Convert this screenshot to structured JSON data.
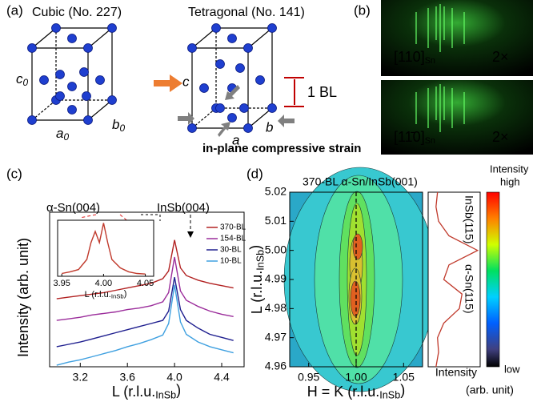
{
  "panel_a": {
    "label": "(a)",
    "cubic": "Cubic (No. 227)",
    "tetragonal": "Tetragonal (No. 141)",
    "c0": {
      "main": "c",
      "sub": "0"
    },
    "a0": {
      "main": "a",
      "sub": "0"
    },
    "b0": {
      "main": "b",
      "sub": "0"
    },
    "c": "c",
    "a": "a",
    "b": "b",
    "bl": "1 BL",
    "strain": "in-plane compressive strain"
  },
  "panel_b": {
    "label": "(b)",
    "images": [
      {
        "index": "[110]",
        "sub": "Sn",
        "magnification": "2×"
      },
      {
        "index": "[11̄0]",
        "sub": "Sn",
        "magnification": "2×"
      }
    ]
  },
  "panel_c": {
    "label": "(c)",
    "type": "line",
    "ylabel": "Intensity (arb. unit)",
    "xlabel": {
      "main": "L (r.l.u.",
      "sub": "InSb",
      "end": ")"
    },
    "xlim": [
      2.94,
      4.59
    ],
    "ylim": [
      0,
      10
    ],
    "xticks": [
      3.2,
      3.6,
      {
        "value": 4,
        "label": "4.0"
      },
      4.4
    ],
    "x": [
      3.0,
      3.1,
      3.2,
      3.3,
      3.4,
      3.5,
      3.6,
      3.7,
      3.8,
      3.9,
      3.95,
      4.0,
      4.05,
      4.1,
      4.2,
      4.3,
      4.4,
      4.5
    ],
    "series": [
      {
        "name": "370-BL",
        "color": "#b22222",
        "values": [
          4.4,
          4.5,
          4.6,
          4.7,
          4.8,
          4.95,
          5.1,
          5.25,
          5.4,
          5.7,
          6.2,
          8.2,
          6.4,
          5.9,
          5.6,
          5.4,
          5.25,
          5.1
        ]
      },
      {
        "name": "154-BL",
        "color": "#9b2d9b",
        "values": [
          3.0,
          3.1,
          3.2,
          3.35,
          3.45,
          3.55,
          3.7,
          3.8,
          3.95,
          4.2,
          4.8,
          7.1,
          4.9,
          4.3,
          3.9,
          3.6,
          3.4,
          3.25
        ]
      },
      {
        "name": "30-BL",
        "color": "#1f1f8f",
        "values": [
          1.3,
          1.45,
          1.6,
          1.8,
          2.0,
          2.2,
          2.4,
          2.6,
          2.8,
          3.0,
          3.6,
          5.8,
          3.7,
          3.0,
          2.5,
          2.1,
          1.9,
          1.7
        ]
      },
      {
        "name": "10-BL",
        "color": "#3fa0e0",
        "values": [
          0.1,
          0.3,
          0.45,
          0.65,
          0.85,
          1.05,
          1.3,
          1.5,
          1.75,
          2.05,
          2.8,
          5.3,
          2.9,
          2.1,
          1.6,
          1.3,
          1.1,
          0.9
        ]
      }
    ],
    "annotations": {
      "alpha_sn": "α-Sn(004)",
      "insb": "InSb(004)"
    },
    "inset": {
      "xlim": [
        3.945,
        4.06
      ],
      "ylim": [
        0,
        10
      ],
      "xticks": [
        3.95,
        {
          "value": 4,
          "label": "4.00"
        },
        4.05
      ],
      "xlabel": {
        "main": "L (r.l.u.",
        "sub": "InSb",
        "end": ")"
      },
      "color": "#c0392b",
      "x": [
        3.95,
        3.96,
        3.97,
        3.98,
        3.985,
        3.99,
        3.995,
        4.0,
        4.005,
        4.01,
        4.02,
        4.03,
        4.04,
        4.05
      ],
      "values": [
        0.5,
        0.8,
        1.2,
        3,
        6,
        8,
        6,
        9.5,
        6,
        3,
        1.5,
        0.8,
        0.5,
        0.4
      ]
    }
  },
  "panel_d": {
    "label": "(d)",
    "title": "370-BL α-Sn/InSb(001)",
    "xlabel": {
      "main": "H = K (r.l.u.",
      "sub": "InSb",
      "end": ")"
    },
    "ylabel": {
      "main": "L (r.l.u.",
      "sub": "InSb",
      "end": ")"
    },
    "xlim": [
      0.93,
      1.07
    ],
    "ylim": [
      4.96,
      5.02
    ],
    "xticks": [
      0.95,
      {
        "value": 1,
        "label": "1.00"
      },
      1.05
    ],
    "yticks": [
      4.96,
      4.97,
      4.98,
      4.99,
      {
        "value": 5,
        "label": "5.00"
      },
      5.01,
      5.02
    ],
    "profile": {
      "color": "#c0392b",
      "xlim": [
        0,
        10
      ],
      "L": [
        4.96,
        4.965,
        4.97,
        4.975,
        4.98,
        4.985,
        4.99,
        4.995,
        5.0,
        5.005,
        5.01,
        5.015,
        5.02
      ],
      "values": [
        1.5,
        2,
        1.8,
        3,
        6,
        6.5,
        3,
        4,
        9.5,
        4,
        2,
        1.5,
        1.8
      ],
      "insb": "InSb(115)",
      "alpha_sn": "α-Sn(115)",
      "xlabel": "Intensity"
    },
    "colorbar": {
      "title": "Intensity",
      "high": "high",
      "low": "low",
      "unit": "(arb. unit)"
    }
  }
}
